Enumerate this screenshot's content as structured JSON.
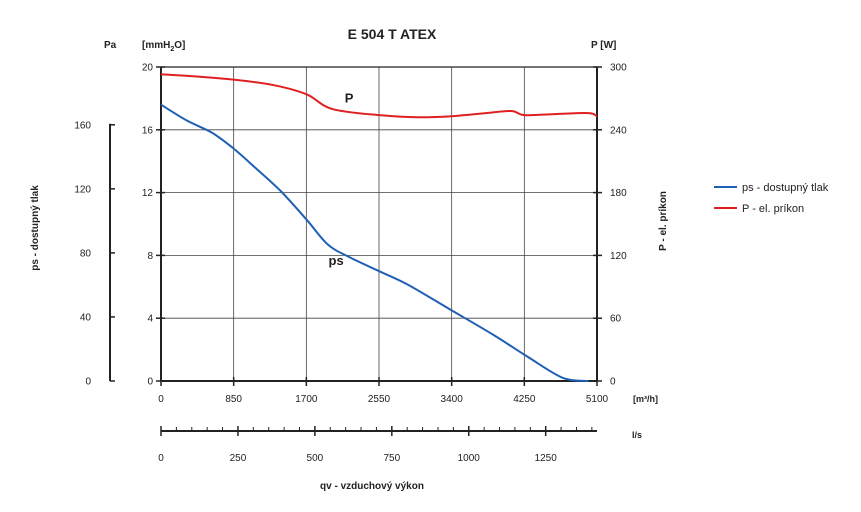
{
  "chart_data": {
    "type": "line",
    "title": "E 504 T ATEX",
    "x_axis": {
      "unit": "[m³/h]",
      "ticks": [
        0,
        850,
        1700,
        2550,
        3400,
        4250,
        5100
      ],
      "range": [
        0,
        5100
      ]
    },
    "x2_axis": {
      "unit": "l/s",
      "ticks": [
        0,
        250,
        500,
        750,
        1000,
        1250
      ],
      "range": [
        0,
        1416.7
      ]
    },
    "x_title": "qv - vzduchový výkon",
    "y_axis_mm": {
      "unit_prefix": "[mmH",
      "unit_sub": "2",
      "unit_suffix": "O]",
      "ticks": [
        0,
        4,
        8,
        12,
        16,
        20
      ],
      "range": [
        0,
        20
      ]
    },
    "y_axis_pa": {
      "unit": "Pa",
      "ticks": [
        0,
        40,
        80,
        120,
        160
      ],
      "range": [
        0,
        196.1
      ]
    },
    "y_title_left": "ps - dostupný tlak",
    "y_axis_power": {
      "unit": "P [W]",
      "ticks": [
        0,
        60,
        120,
        180,
        240,
        300
      ],
      "range": [
        0,
        300
      ]
    },
    "y_title_right": "P - el. príkon",
    "grid": true,
    "legend_position": "right",
    "series": [
      {
        "name": "ps - dostupný tlak",
        "label": "ps",
        "axis": "mmH2O",
        "color": "#1f5fb5",
        "x": [
          0,
          300,
          600,
          850,
          1100,
          1400,
          1700,
          1950,
          2200,
          2550,
          2900,
          3400,
          3900,
          4300,
          4700,
          5000
        ],
        "y": [
          17.6,
          16.6,
          15.8,
          14.8,
          13.6,
          12.1,
          10.3,
          8.7,
          7.9,
          7.0,
          6.1,
          4.5,
          2.9,
          1.5,
          0.2,
          0
        ]
      },
      {
        "name": "P - el. príkon",
        "label": "P",
        "axis": "W",
        "color": "#e02020",
        "x": [
          0,
          400,
          850,
          1300,
          1700,
          2000,
          2550,
          3000,
          3400,
          3800,
          4100,
          4250,
          4600,
          5000,
          5100
        ],
        "y": [
          293,
          291,
          288,
          283,
          274,
          260,
          254,
          252,
          253,
          256,
          258,
          254,
          255,
          256,
          253
        ]
      }
    ]
  }
}
